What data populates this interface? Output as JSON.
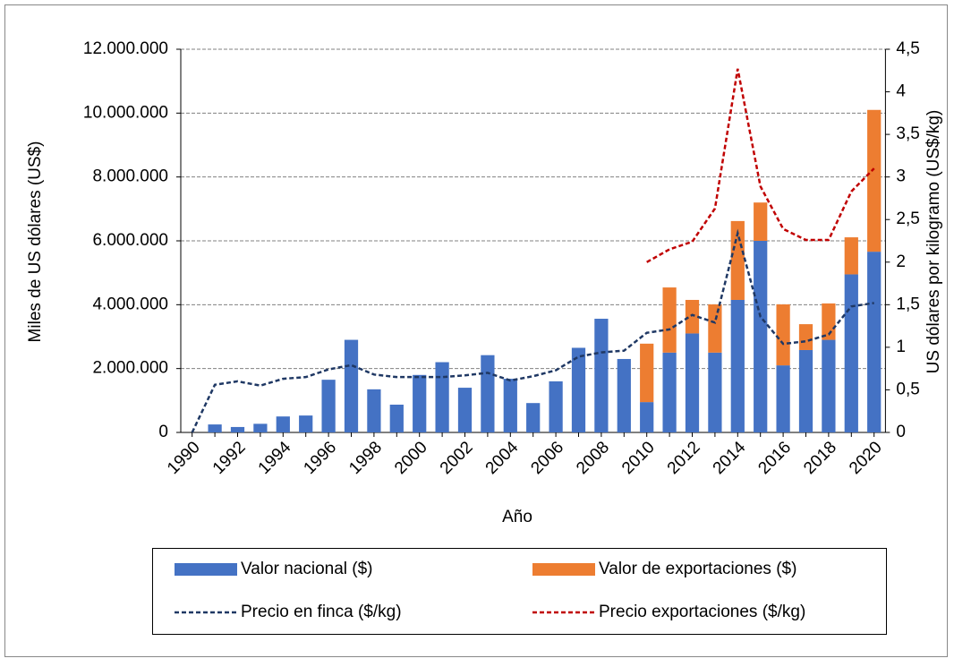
{
  "chart_data": {
    "type": "bar",
    "x_label": "Año",
    "y_label": "Miles de US dólares (US$)",
    "y2_label": "US dólares por kilogramo (US$/kg)",
    "categories": [
      "1990",
      null,
      "1992",
      null,
      "1994",
      null,
      "1996",
      null,
      "1998",
      null,
      "2000",
      null,
      "2002",
      null,
      "2004",
      null,
      "2006",
      null,
      "2008",
      null,
      "2010",
      null,
      "2012",
      null,
      "2014",
      null,
      "2016",
      null,
      "2018",
      null,
      "2020"
    ],
    "ylim": [
      0,
      12000000
    ],
    "yticks": [
      0,
      {
        "value": 2000000,
        "label": "2.000.000"
      },
      {
        "value": 4000000,
        "label": "4.000.000"
      },
      {
        "value": 6000000,
        "label": "6.000.000"
      },
      {
        "value": 8000000,
        "label": "8.000.000"
      },
      {
        "value": 10000000,
        "label": "10.000.000"
      },
      {
        "value": 12000000,
        "label": "12.000.000"
      }
    ],
    "y2lim": [
      0,
      4.5
    ],
    "y2ticks": [
      0,
      {
        "value": 0.5,
        "label": "0,5"
      },
      1,
      {
        "value": 1.5,
        "label": "1,5"
      },
      2,
      {
        "value": 2.5,
        "label": "2,5"
      },
      3,
      {
        "value": 3.5,
        "label": "3,5"
      },
      4,
      {
        "value": 4.5,
        "label": "4,5"
      }
    ],
    "grid": true,
    "series": [
      {
        "name": "Valor nacional ($)",
        "type": "bar",
        "color": "#4472c4",
        "values": [
          null,
          250000,
          170000,
          270000,
          500000,
          530000,
          1650000,
          2900000,
          1350000,
          870000,
          1800000,
          2200000,
          1400000,
          2420000,
          1680000,
          920000,
          1600000,
          2650000,
          3560000,
          2300000,
          950000,
          2500000,
          3100000,
          2500000,
          4150000,
          6000000,
          2100000,
          2580000,
          2900000,
          4950000,
          5660000
        ]
      },
      {
        "name": "Valor de exportaciones ($)",
        "type": "bar",
        "color": "#ed7d31",
        "values": [
          null,
          null,
          null,
          null,
          null,
          null,
          null,
          null,
          null,
          null,
          null,
          null,
          null,
          null,
          null,
          null,
          null,
          null,
          null,
          null,
          1830000,
          2040000,
          1050000,
          1510000,
          2470000,
          1200000,
          1910000,
          810000,
          1140000,
          1160000,
          4440000
        ]
      },
      {
        "name": "Precio en finca ($/kg)",
        "type": "line",
        "axis": "y2",
        "color": "#1f3864",
        "values": [
          0,
          0.56,
          0.6,
          0.55,
          0.63,
          0.65,
          0.74,
          0.79,
          0.68,
          0.65,
          0.65,
          0.65,
          0.67,
          0.7,
          0.61,
          0.66,
          0.73,
          0.89,
          0.94,
          0.96,
          1.17,
          1.21,
          1.38,
          1.29,
          2.34,
          1.36,
          1.04,
          1.07,
          1.15,
          1.48,
          1.52
        ]
      },
      {
        "name": "Precio exportaciones ($/kg)",
        "type": "line",
        "axis": "y2",
        "color": "#c00000",
        "values": [
          null,
          null,
          null,
          null,
          null,
          null,
          null,
          null,
          null,
          null,
          null,
          null,
          null,
          null,
          null,
          null,
          null,
          null,
          null,
          null,
          2.0,
          2.15,
          2.24,
          2.63,
          4.27,
          2.89,
          2.39,
          2.26,
          2.26,
          2.83,
          3.1
        ]
      }
    ]
  }
}
